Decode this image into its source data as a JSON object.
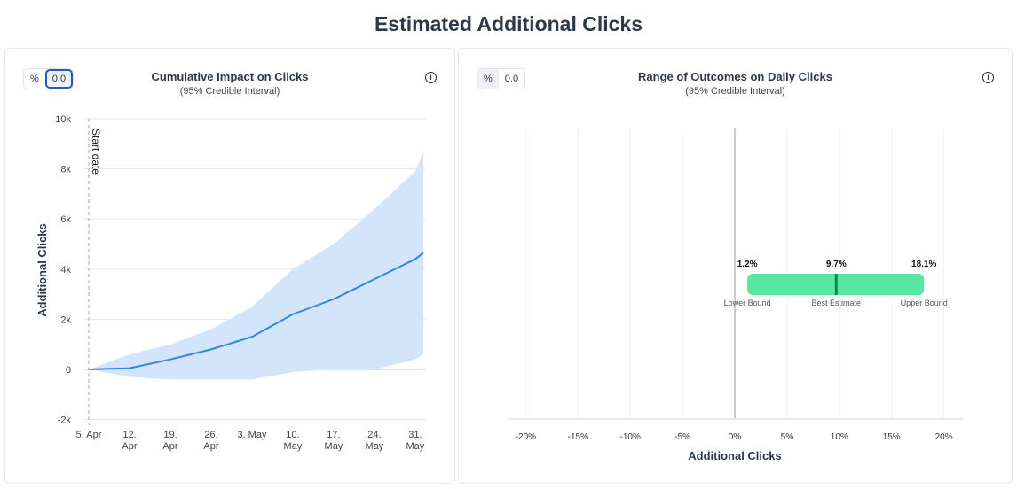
{
  "page_title": "Estimated Additional Clicks",
  "left": {
    "toggle": {
      "percent": "%",
      "value": "0.0",
      "active": "value"
    },
    "title": "Cumulative Impact on Clicks",
    "subtitle": "(95% Credible Interval)",
    "info_icon": "info-icon",
    "chart_data": {
      "type": "area",
      "ylabel": "Additional Clicks",
      "ylim": [
        -2000,
        10000
      ],
      "yticks": [
        {
          "v": -2000,
          "l": "-2k"
        },
        {
          "v": 0,
          "l": "0"
        },
        {
          "v": 2000,
          "l": "2k"
        },
        {
          "v": 4000,
          "l": "4k"
        },
        {
          "v": 6000,
          "l": "6k"
        },
        {
          "v": 8000,
          "l": "8k"
        },
        {
          "v": 10000,
          "l": "10k"
        }
      ],
      "xticks": [
        [
          "5. Apr",
          ""
        ],
        [
          "12.",
          "Apr"
        ],
        [
          "19.",
          "Apr"
        ],
        [
          "26.",
          "Apr"
        ],
        [
          "3. May",
          ""
        ],
        [
          "10.",
          "May"
        ],
        [
          "17.",
          "May"
        ],
        [
          "24.",
          "May"
        ],
        [
          "31.",
          "May"
        ]
      ],
      "x_dates": [
        "Apr 5",
        "Apr 12",
        "Apr 19",
        "Apr 26",
        "May 3",
        "May 10",
        "May 17",
        "May 24",
        "May 31",
        "Jun 1"
      ],
      "series": [
        {
          "role": "estimate",
          "color": "#2f86e8",
          "values": [
            0,
            50,
            400,
            800,
            1300,
            2200,
            2800,
            3600,
            4400,
            4650
          ]
        },
        {
          "role": "upper",
          "values": [
            0,
            600,
            1000,
            1600,
            2500,
            4000,
            5000,
            6400,
            7900,
            8700
          ]
        },
        {
          "role": "lower",
          "values": [
            0,
            -300,
            -400,
            -400,
            -400,
            -100,
            0,
            0,
            400,
            600
          ]
        }
      ],
      "band_color": "#d3e5fb",
      "annotation": "Start date"
    }
  },
  "right": {
    "toggle": {
      "percent": "%",
      "value": "0.0",
      "active": "percent"
    },
    "title": "Range of Outcomes on Daily Clicks",
    "subtitle": "(95% Credible Interval)",
    "info_icon": "info-icon",
    "chart_data": {
      "type": "bar",
      "xlabel": "Additional Clicks",
      "xlim": [
        -20,
        20
      ],
      "xticks": [
        "-20%",
        "-15%",
        "-10%",
        "-5%",
        "0%",
        "5%",
        "10%",
        "15%",
        "20%"
      ],
      "lower": 1.2,
      "estimate": 9.7,
      "upper": 18.1,
      "labels": {
        "lower": "1.2%",
        "estimate": "9.7%",
        "upper": "18.1%",
        "lower_name": "Lower Bound",
        "estimate_name": "Best Estimate",
        "upper_name": "Upper Bound"
      },
      "bar_color": "#58e6a0",
      "estimate_color": "#0a8a4a"
    }
  }
}
